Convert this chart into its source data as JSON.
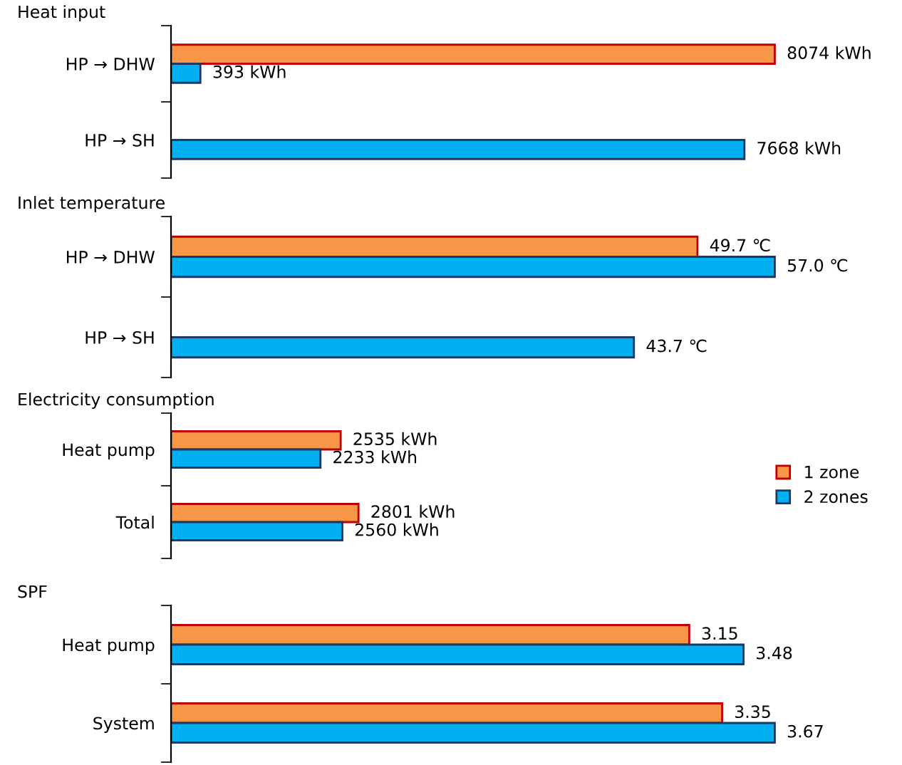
{
  "chart_data": [
    {
      "type": "bar",
      "orientation": "horizontal",
      "title": "Heat input",
      "categories": [
        "HP → DHW",
        "HP → SH"
      ],
      "tick_labels": "y",
      "series": [
        {
          "color": "#f79646",
          "values": [
            8074,
            null
          ],
          "value_labels": [
            "8074 kWh",
            null
          ]
        },
        {
          "color": "#00b0f0",
          "values": [
            393,
            7668
          ],
          "value_labels": [
            "393 kWh",
            "7668 kWh"
          ]
        }
      ]
    },
    {
      "type": "bar",
      "orientation": "horizontal",
      "title": "Inlet temperature",
      "categories": [
        "HP → DHW",
        "HP → SH"
      ],
      "tick_labels": "y",
      "series": [
        {
          "color": "#f79646",
          "values": [
            49.7,
            null
          ],
          "value_labels": [
            "49.7 ℃",
            null
          ]
        },
        {
          "color": "#00b0f0",
          "values": [
            57.0,
            43.7
          ],
          "value_labels": [
            "57.0 ℃",
            "43.7 ℃"
          ]
        }
      ]
    },
    {
      "type": "bar",
      "orientation": "horizontal",
      "title": "Electricity consumption",
      "categories": [
        "Heat pump",
        "Total"
      ],
      "tick_labels": "y",
      "legend": "right",
      "series": [
        {
          "name": "1 zone",
          "color": "#f79646",
          "values": [
            2535,
            2801
          ],
          "value_labels": [
            "2535 kWh",
            "2801 kWh"
          ]
        },
        {
          "name": "2 zones",
          "color": "#00b0f0",
          "values": [
            2233,
            2560
          ],
          "value_labels": [
            "2233 kWh",
            "2560 kWh"
          ]
        }
      ]
    },
    {
      "type": "bar",
      "orientation": "horizontal",
      "title": "SPF",
      "categories": [
        "Heat pump",
        "System"
      ],
      "tick_labels": "y",
      "series": [
        {
          "color": "#f79646",
          "values": [
            3.15,
            3.35
          ],
          "value_labels": [
            "3.15",
            "3.35"
          ]
        },
        {
          "color": "#00b0f0",
          "values": [
            3.48,
            3.67
          ],
          "value_labels": [
            "3.48",
            "3.67"
          ]
        }
      ]
    }
  ]
}
